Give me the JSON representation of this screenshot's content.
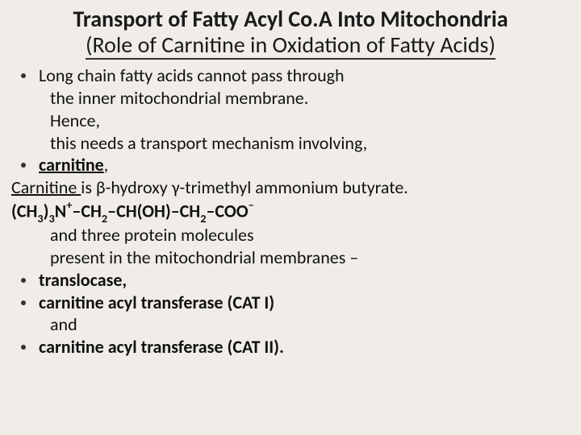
{
  "colors": {
    "slide_bg": "#f0ede8",
    "text": "#111111",
    "bullet": "#333333",
    "underline": "#333333"
  },
  "typography": {
    "title_fontsize": 28,
    "body_fontsize": 22,
    "title_weight_main": 700,
    "title_weight_sub": 400,
    "font_family": "Calibri"
  },
  "title": {
    "line1": "Transport of Fatty Acyl Co.A Into Mitochondria",
    "line2": "(Role of Carnitine in Oxidation of Fatty Acids)"
  },
  "lines": {
    "l1": "Long chain fatty acids cannot pass through",
    "l2": "the inner mitochondrial membrane.",
    "l3": "Hence,",
    "l4": "this needs a transport mechanism involving,",
    "l5a": "carnitine",
    "l5b": ",",
    "l6a": "Carnitine ",
    "l6b": "is β-hydroxy γ-trimethyl ammonium butyrate.",
    "formula": {
      "p1": "(CH",
      "s1": "3",
      "p2": ")",
      "s2": "3",
      "p3": "N",
      "s3": "+",
      "p4": "–CH",
      "s4": "2",
      "p5": "–CH(OH)–CH",
      "s5": "2",
      "p6": "–COO",
      "s6": "–"
    },
    "l8": "and three protein molecules",
    "l9": "present in the mitochondrial membranes –",
    "l10": "translocase,",
    "l11a": "carnitine acyl transferase (CAT I)",
    "l11b": "and",
    "l12": "carnitine acyl transferase (CAT II)."
  }
}
